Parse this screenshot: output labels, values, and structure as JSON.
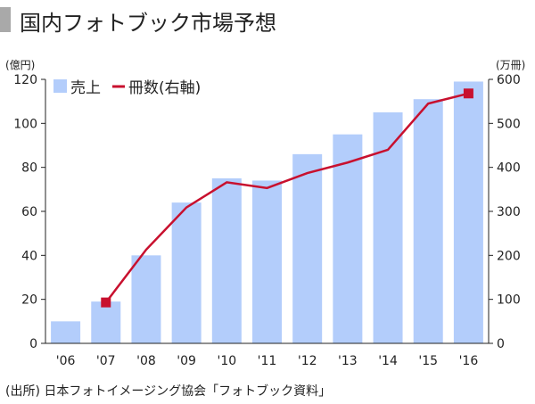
{
  "title": "国内フォトブック市場予想",
  "source": "(出所) 日本フォトイメージング協会「フォトブック資料」",
  "chart_data": {
    "type": "bar+line",
    "title": "国内フォトブック市場予想",
    "categories": [
      "'06",
      "'07",
      "'08",
      "'09",
      "'10",
      "'11",
      "'12",
      "'13",
      "'14",
      "'15",
      "'16"
    ],
    "series": [
      {
        "name": "売上",
        "type": "bar",
        "axis": "left",
        "color": "#b3cdfb",
        "values": [
          10,
          19,
          40,
          64,
          75,
          74,
          86,
          95,
          105,
          111,
          119
        ]
      },
      {
        "name": "冊数(右軸)",
        "type": "line",
        "axis": "right",
        "color": "#c8102e",
        "values": [
          null,
          93,
          213,
          309,
          366,
          353,
          387,
          411,
          440,
          545,
          568
        ],
        "markers_at": [
          "'07",
          "'16"
        ]
      }
    ],
    "y_left": {
      "label": "(億円)",
      "range": [
        0,
        120
      ],
      "ticks": [
        0,
        20,
        40,
        60,
        80,
        100,
        120
      ]
    },
    "y_right": {
      "label": "(万冊)",
      "range": [
        0,
        600
      ],
      "ticks": [
        0,
        100,
        200,
        300,
        400,
        500,
        600
      ]
    },
    "legend": {
      "placement": "top-left",
      "entries": [
        "売上",
        "冊数(右軸)"
      ]
    },
    "grid": false
  }
}
